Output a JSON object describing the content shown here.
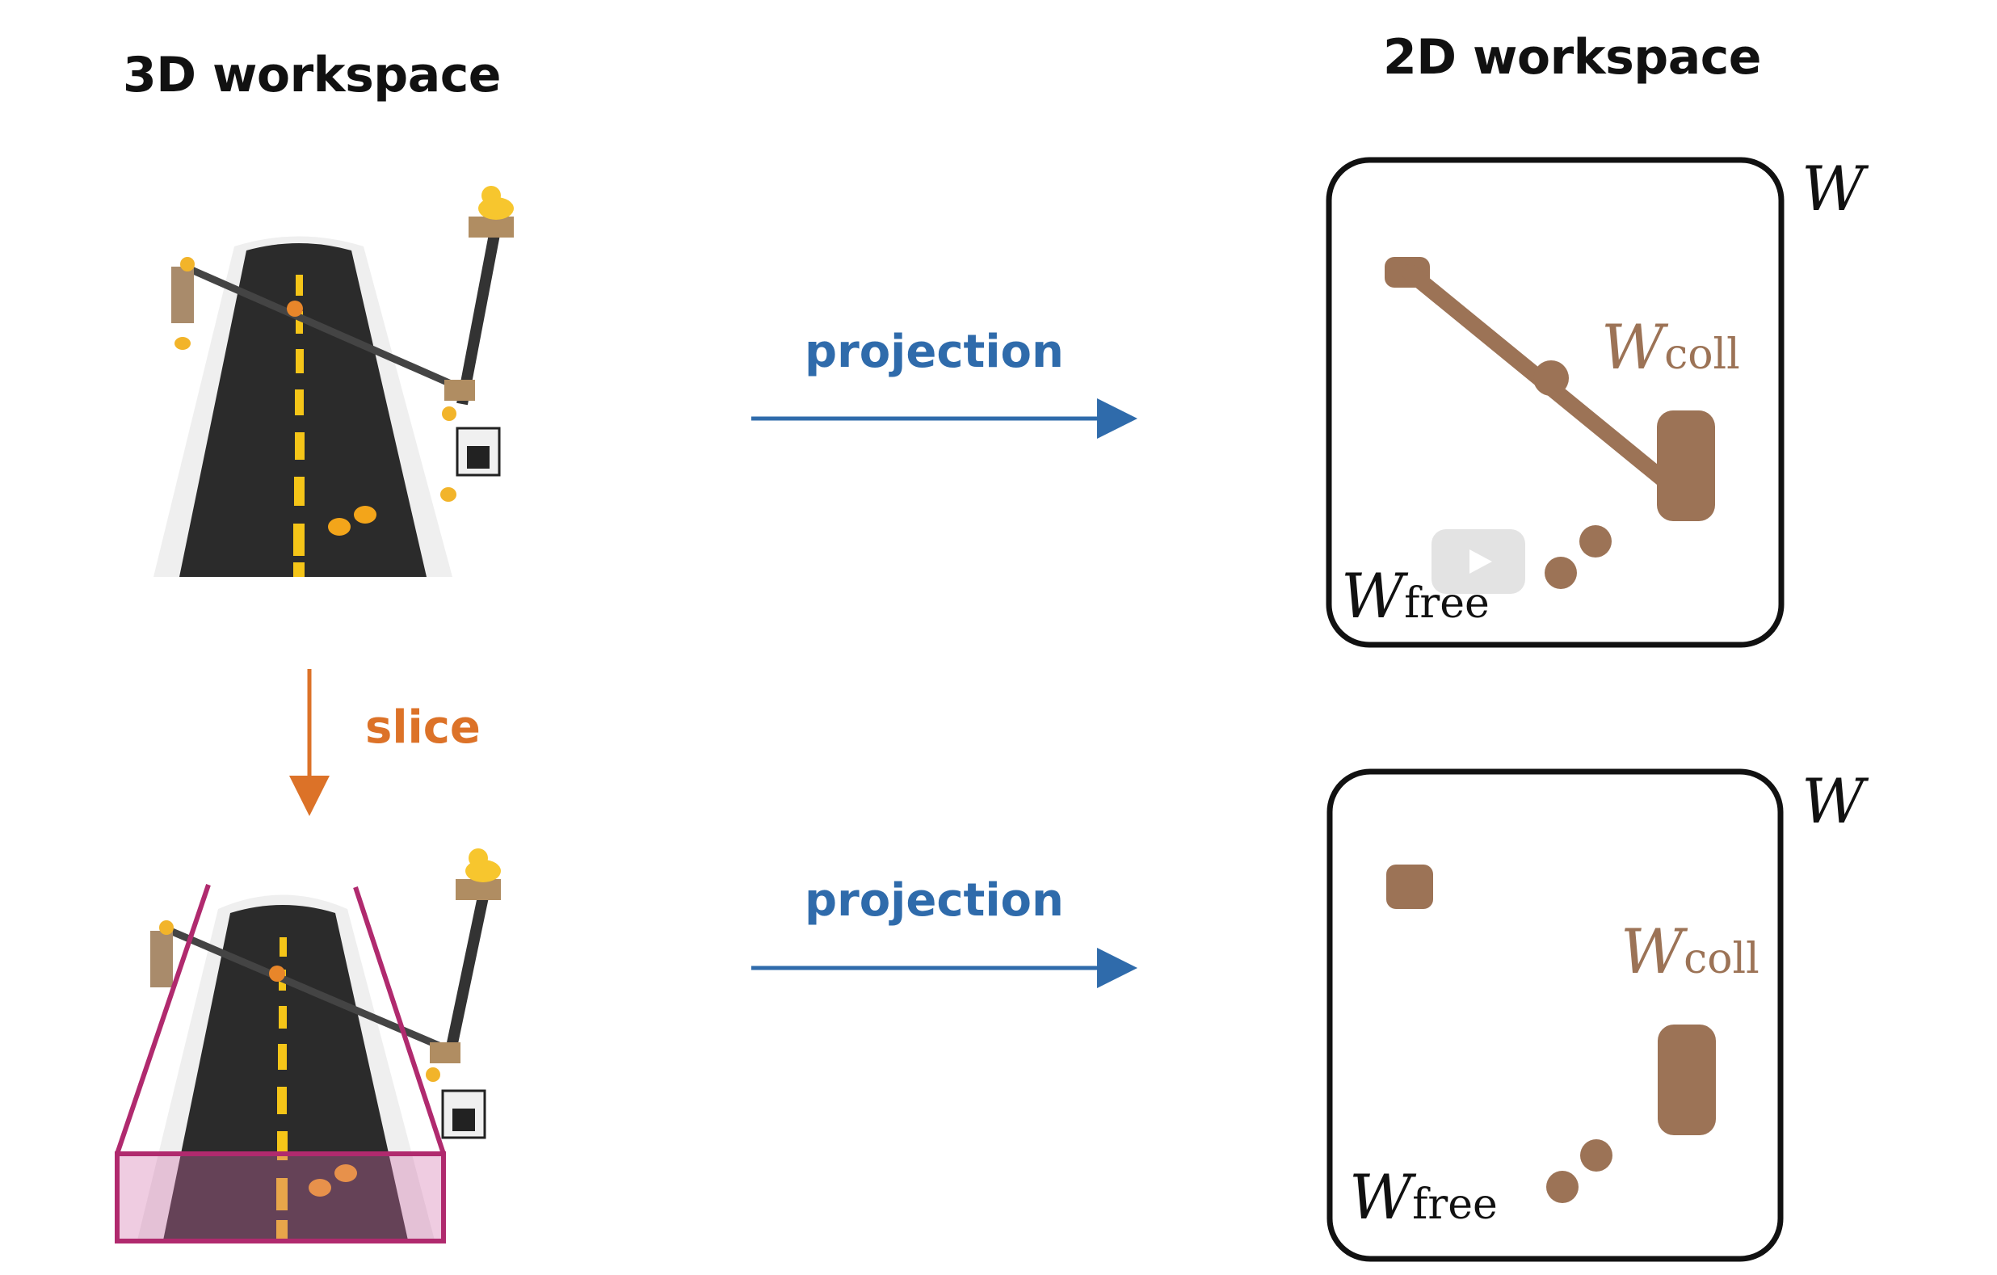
{
  "headings": {
    "left": "3D workspace",
    "right": "2D workspace"
  },
  "arrows": {
    "projection_top": "projection",
    "projection_bottom": "projection",
    "slice": "slice"
  },
  "panels": {
    "top": {
      "workspace": "W",
      "coll_main": "W",
      "coll_sub": "coll",
      "free_main": "W",
      "free_sub": "free"
    },
    "bottom": {
      "workspace": "W",
      "coll_main": "W",
      "coll_sub": "coll",
      "free_main": "W",
      "free_sub": "free"
    }
  },
  "colors": {
    "projection": "#2f6bab",
    "slice": "#dc7228",
    "obstacle": "#9c7356",
    "slice_box": "#b02a6e",
    "road": "#2b2b2b",
    "lane_marking": "#f5c518"
  },
  "icons": [
    "play-icon",
    "duck-icon",
    "road-photo"
  ]
}
